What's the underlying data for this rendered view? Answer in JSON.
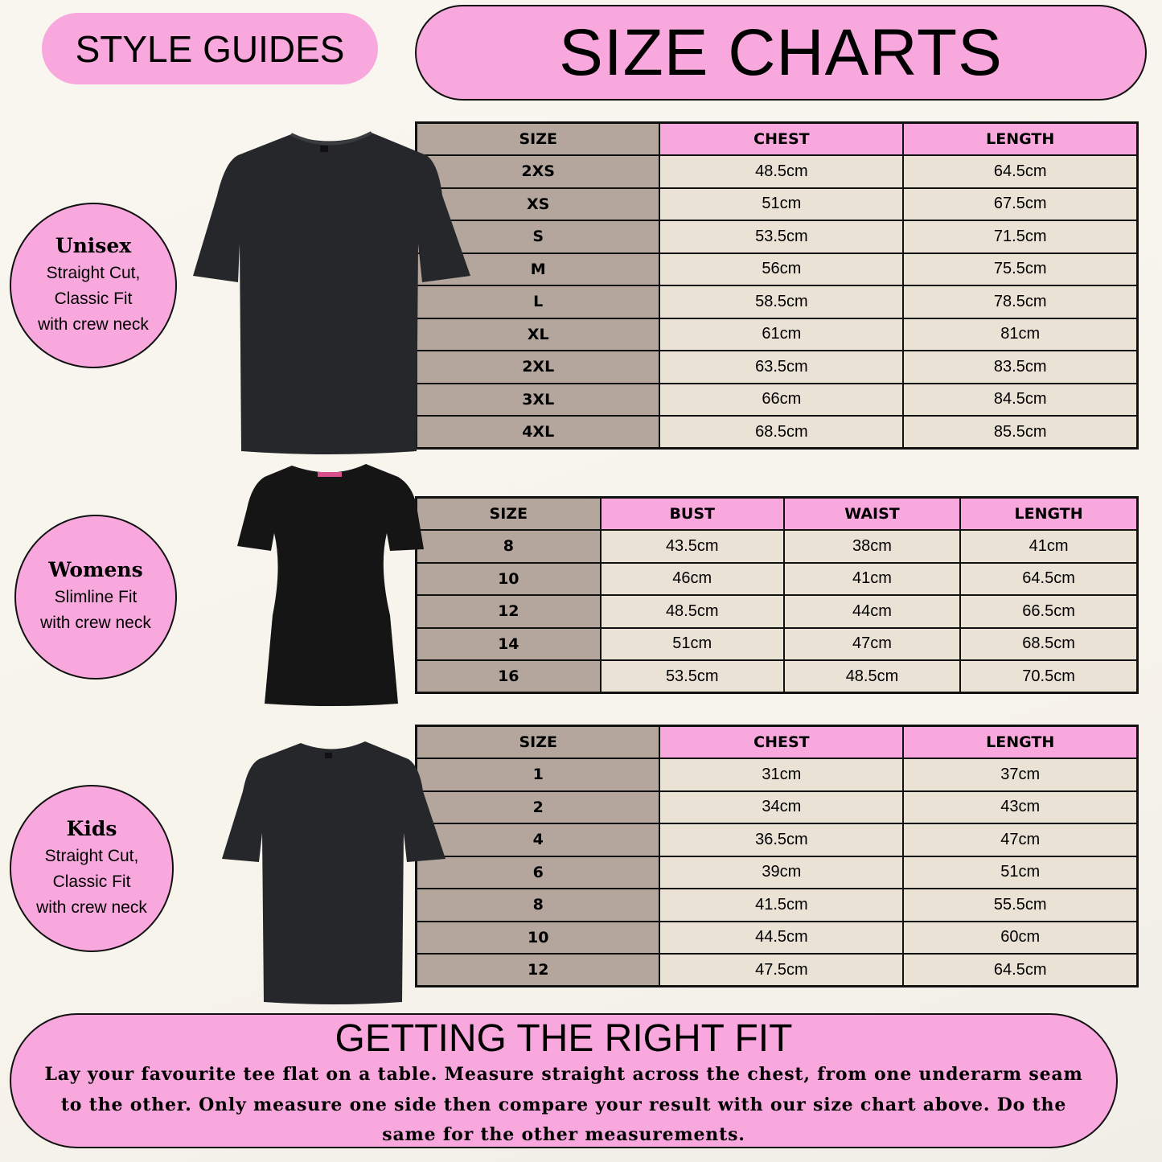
{
  "header": {
    "style_guides": "STYLE GUIDES",
    "title": "SIZE CHARTS"
  },
  "colors": {
    "pink": "#f9a8de",
    "size_col": "#b4a69c",
    "cell": "#ebe2d6",
    "shirt": "#25272b"
  },
  "styles": [
    {
      "name": "Unisex",
      "lines": [
        "Straight Cut,",
        "Classic Fit",
        "with crew neck"
      ]
    },
    {
      "name": "Womens",
      "lines": [
        "Slimline Fit",
        "with crew neck"
      ]
    },
    {
      "name": "Kids",
      "lines": [
        "Straight Cut,",
        "Classic Fit",
        "with crew neck"
      ]
    }
  ],
  "tables": [
    {
      "headers": [
        "SIZE",
        "CHEST",
        "LENGTH"
      ],
      "rows": [
        [
          "2XS",
          "48.5cm",
          "64.5cm"
        ],
        [
          "XS",
          "51cm",
          "67.5cm"
        ],
        [
          "S",
          "53.5cm",
          "71.5cm"
        ],
        [
          "M",
          "56cm",
          "75.5cm"
        ],
        [
          "L",
          "58.5cm",
          "78.5cm"
        ],
        [
          "XL",
          "61cm",
          "81cm"
        ],
        [
          "2XL",
          "63.5cm",
          "83.5cm"
        ],
        [
          "3XL",
          "66cm",
          "84.5cm"
        ],
        [
          "4XL",
          "68.5cm",
          "85.5cm"
        ]
      ]
    },
    {
      "headers": [
        "SIZE",
        "BUST",
        "WAIST",
        "LENGTH"
      ],
      "rows": [
        [
          "8",
          "43.5cm",
          "38cm",
          "41cm"
        ],
        [
          "10",
          "46cm",
          "41cm",
          "64.5cm"
        ],
        [
          "12",
          "48.5cm",
          "44cm",
          "66.5cm"
        ],
        [
          "14",
          "51cm",
          "47cm",
          "68.5cm"
        ],
        [
          "16",
          "53.5cm",
          "48.5cm",
          "70.5cm"
        ]
      ]
    },
    {
      "headers": [
        "SIZE",
        "CHEST",
        "LENGTH"
      ],
      "rows": [
        [
          "1",
          "31cm",
          "37cm"
        ],
        [
          "2",
          "34cm",
          "43cm"
        ],
        [
          "4",
          "36.5cm",
          "47cm"
        ],
        [
          "6",
          "39cm",
          "51cm"
        ],
        [
          "8",
          "41.5cm",
          "55.5cm"
        ],
        [
          "10",
          "44.5cm",
          "60cm"
        ],
        [
          "12",
          "47.5cm",
          "64.5cm"
        ]
      ]
    }
  ],
  "fit": {
    "title": "GETTING THE RIGHT FIT",
    "body": "Lay your favourite tee flat on a table. Measure straight across the chest, from one underarm seam to the other. Only measure one side then compare your result with our size chart above.  Do the same for the other measurements."
  }
}
